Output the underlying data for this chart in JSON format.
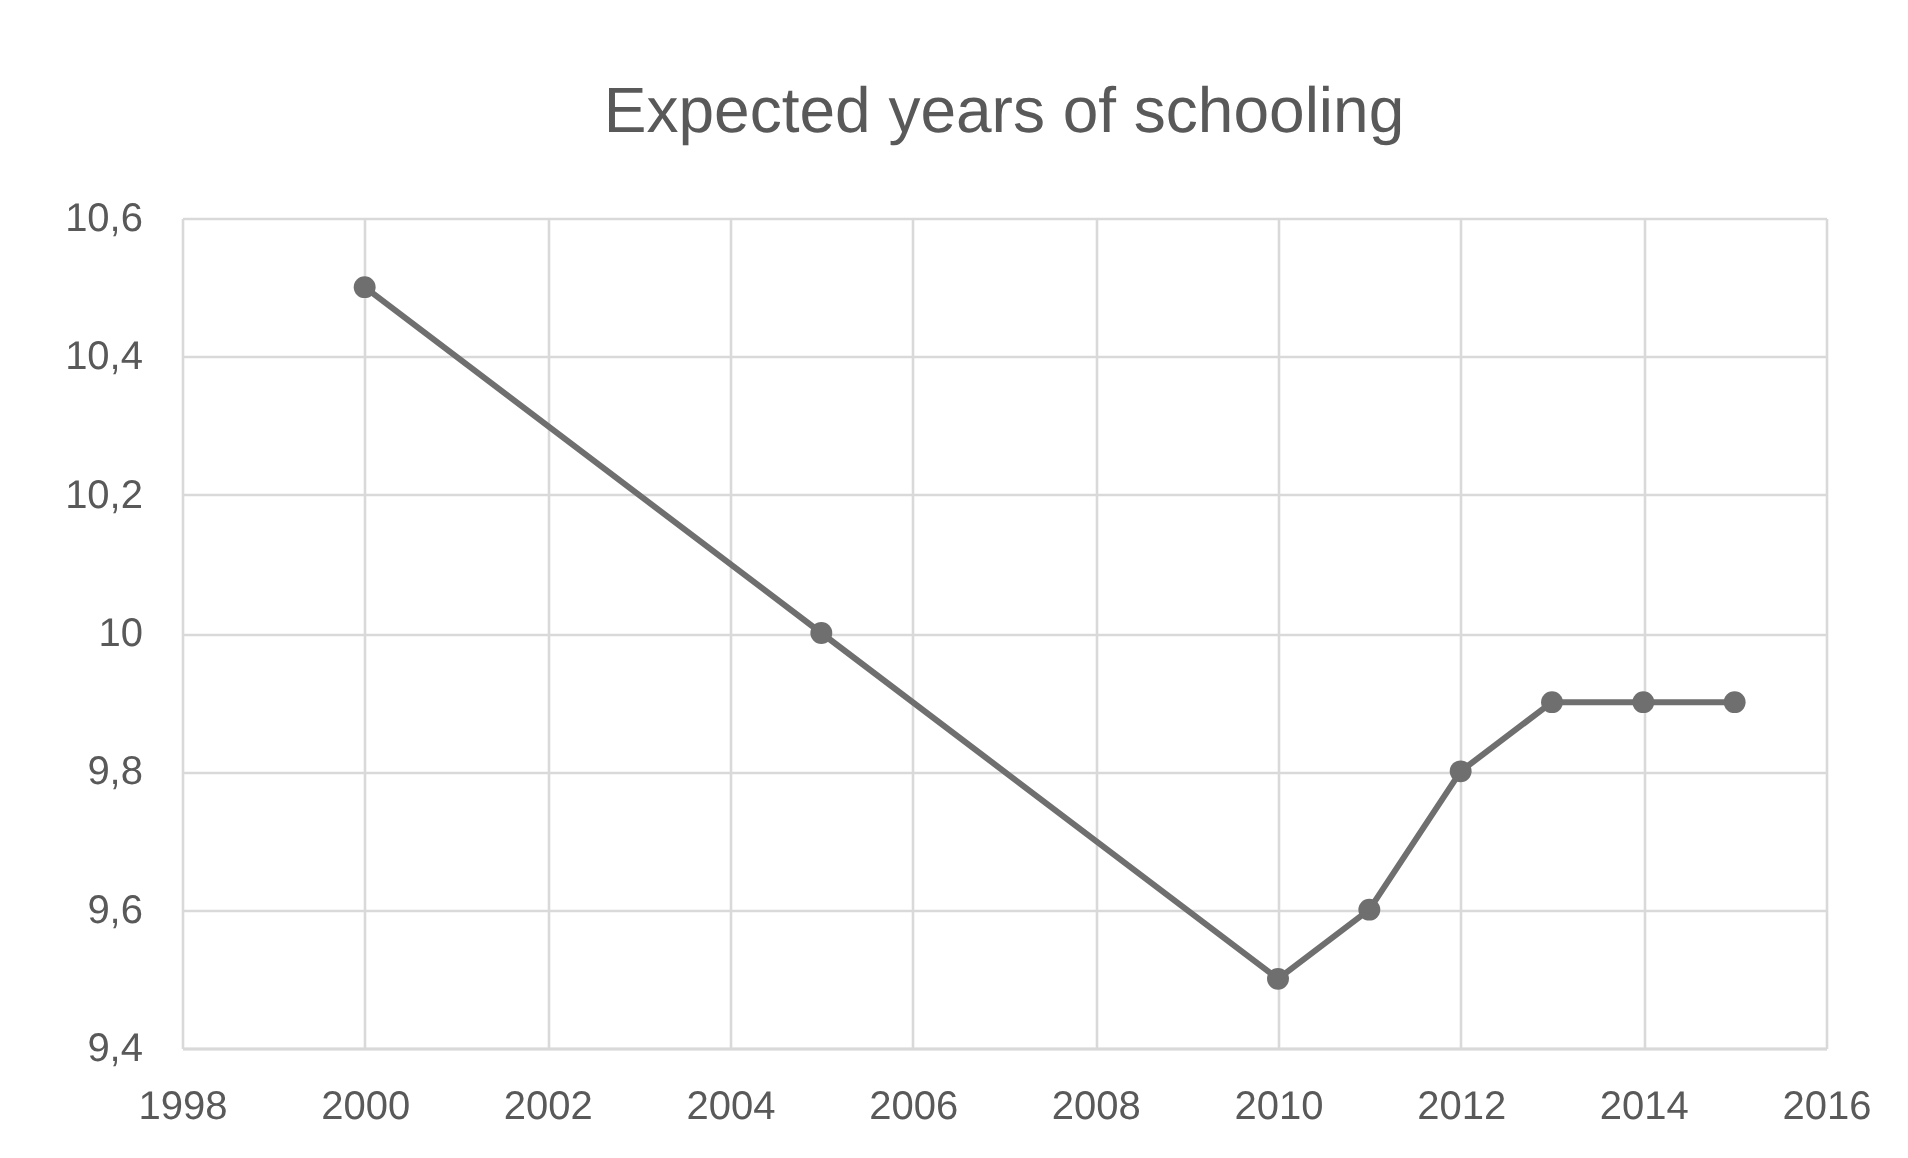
{
  "chart_data": {
    "type": "line",
    "title": "Expected years of schooling",
    "x": [
      2000,
      2005,
      2010,
      2011,
      2012,
      2013,
      2014,
      2015
    ],
    "series": [
      {
        "color": "#6f6f6f",
        "values": [
          10.5,
          10,
          9.5,
          9.6,
          9.8,
          9.9,
          9.9,
          9.9
        ]
      }
    ],
    "xlim": [
      1998,
      2016
    ],
    "xticks": [
      1998,
      2000,
      2002,
      2004,
      2006,
      2008,
      2010,
      2012,
      2014,
      2016
    ],
    "ylim": [
      9.4,
      10.6
    ],
    "yticks": [
      {
        "value": 9.4,
        "label": "9,4"
      },
      {
        "value": 9.6,
        "label": "9,6"
      },
      {
        "value": 9.8,
        "label": "9,8"
      },
      10,
      {
        "value": 10.2,
        "label": "10,2"
      },
      {
        "value": 10.4,
        "label": "10,4"
      },
      {
        "value": 10.6,
        "label": "10,6"
      }
    ],
    "grid": true,
    "marker": "circle"
  }
}
